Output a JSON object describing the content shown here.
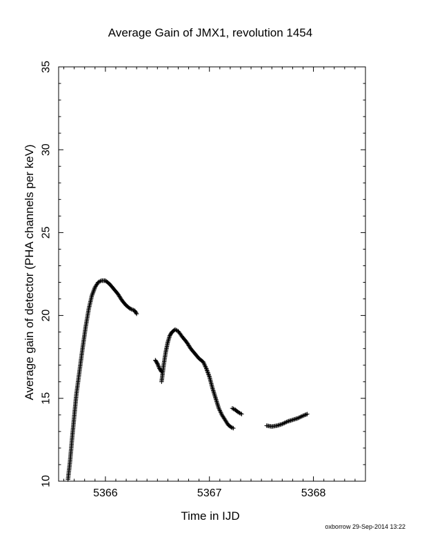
{
  "chart_data": {
    "type": "scatter",
    "title": "Average Gain of JMX1, revolution 1454",
    "xlabel": "Time in IJD",
    "ylabel": "Average gain of detector (PHA channels per keV)",
    "xlim": [
      5365.55,
      5368.5
    ],
    "ylim": [
      10,
      35
    ],
    "x_ticks": [
      "5366",
      "5367",
      "5368"
    ],
    "y_ticks": [
      "10",
      "15",
      "20",
      "25",
      "30",
      "35"
    ],
    "marker": "plus",
    "color": "#000000",
    "grid": false,
    "legend": "none",
    "segments": [
      {
        "x": [
          5365.64,
          5365.66,
          5365.68,
          5365.7,
          5365.72,
          5365.75,
          5365.78,
          5365.81,
          5365.84,
          5365.87,
          5365.9,
          5365.93,
          5365.96,
          5366.0,
          5366.04,
          5366.08,
          5366.12,
          5366.16,
          5366.2,
          5366.24,
          5366.28,
          5366.3
        ],
        "y": [
          10.1,
          11.2,
          12.6,
          13.9,
          15.2,
          16.6,
          18.0,
          19.3,
          20.4,
          21.2,
          21.7,
          22.0,
          22.1,
          22.1,
          21.9,
          21.6,
          21.3,
          20.9,
          20.6,
          20.4,
          20.3,
          20.1
        ]
      },
      {
        "x": [
          5366.48,
          5366.5,
          5366.52,
          5366.54
        ],
        "y": [
          17.3,
          17.1,
          16.8,
          16.6
        ]
      },
      {
        "x": [
          5366.54,
          5366.56,
          5366.58,
          5366.6,
          5366.62,
          5366.64,
          5366.67,
          5366.7,
          5366.74,
          5366.78,
          5366.82,
          5366.86,
          5366.9,
          5366.94,
          5366.97,
          5367.0,
          5367.03,
          5367.06,
          5367.09,
          5367.12,
          5367.15,
          5367.18,
          5367.21,
          5367.23
        ],
        "y": [
          16.0,
          17.0,
          17.8,
          18.4,
          18.8,
          19.0,
          19.15,
          19.05,
          18.7,
          18.4,
          18.0,
          17.7,
          17.4,
          17.2,
          16.8,
          16.3,
          15.6,
          15.0,
          14.4,
          14.0,
          13.7,
          13.4,
          13.25,
          13.2
        ]
      },
      {
        "x": [
          5367.22,
          5367.25,
          5367.28,
          5367.31
        ],
        "y": [
          14.4,
          14.3,
          14.15,
          14.05
        ]
      },
      {
        "x": [
          5367.55,
          5367.6,
          5367.65,
          5367.7,
          5367.75,
          5367.8,
          5367.85,
          5367.9,
          5367.94
        ],
        "y": [
          13.35,
          13.3,
          13.35,
          13.45,
          13.6,
          13.7,
          13.8,
          13.95,
          14.05
        ]
      }
    ]
  },
  "footer": {
    "stamp": "oxborrow 29-Sep-2014 13:22"
  }
}
